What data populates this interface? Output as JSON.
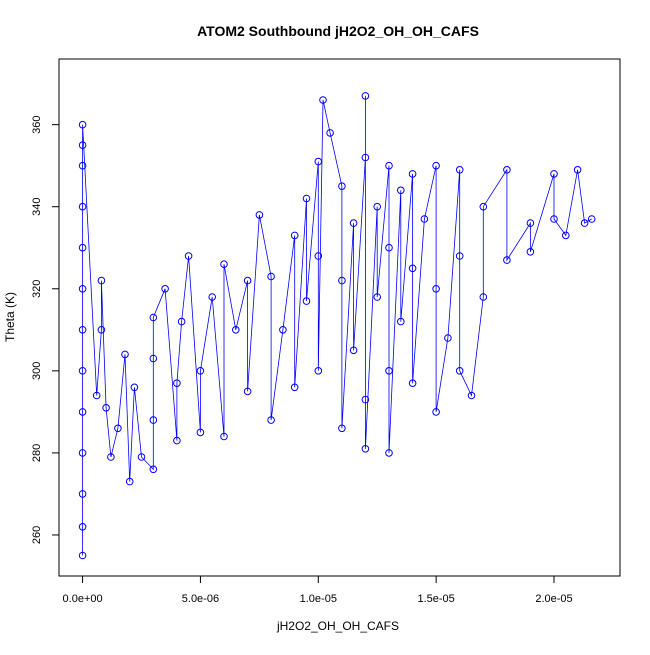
{
  "chart_data": {
    "type": "scatter",
    "title": "ATOM2 Southbound jH2O2_OH_OH_CAFS",
    "xlabel": "jH2O2_OH_OH_CAFS",
    "ylabel": "Theta (K)",
    "xlim": [
      -1e-06,
      2.28e-05
    ],
    "ylim": [
      250,
      376
    ],
    "x_ticks": [
      {
        "value": 0,
        "label": "0.0e+00"
      },
      {
        "value": 5e-06,
        "label": "5.0e-06"
      },
      {
        "value": 1e-05,
        "label": "1.0e-05"
      },
      {
        "value": 1.5e-05,
        "label": "1.5e-05"
      },
      {
        "value": 2e-05,
        "label": "2.0e-05"
      }
    ],
    "y_ticks": [
      {
        "value": 260,
        "label": "260"
      },
      {
        "value": 280,
        "label": "280"
      },
      {
        "value": 300,
        "label": "300"
      },
      {
        "value": 320,
        "label": "320"
      },
      {
        "value": 340,
        "label": "340"
      },
      {
        "value": 360,
        "label": "360"
      }
    ],
    "grid": false,
    "legend": "none",
    "marker": "open-circle",
    "series_color": "#0000ff",
    "series": [
      {
        "values": [
          {
            "x": 0,
            "y": 255
          },
          {
            "x": 0,
            "y": 262
          },
          {
            "x": 0,
            "y": 270
          },
          {
            "x": 0,
            "y": 280
          },
          {
            "x": 0,
            "y": 290
          },
          {
            "x": 0,
            "y": 300
          },
          {
            "x": 0,
            "y": 310
          },
          {
            "x": 0,
            "y": 320
          },
          {
            "x": 0,
            "y": 330
          },
          {
            "x": 0,
            "y": 340
          },
          {
            "x": 0,
            "y": 350
          },
          {
            "x": 0,
            "y": 355
          },
          {
            "x": 0,
            "y": 360
          },
          {
            "x": 6e-07,
            "y": 294
          },
          {
            "x": 8e-07,
            "y": 310
          },
          {
            "x": 8e-07,
            "y": 322
          },
          {
            "x": 1e-06,
            "y": 291
          },
          {
            "x": 1.2e-06,
            "y": 279
          },
          {
            "x": 1.5e-06,
            "y": 286
          },
          {
            "x": 1.8e-06,
            "y": 304
          },
          {
            "x": 2e-06,
            "y": 273
          },
          {
            "x": 2.2e-06,
            "y": 296
          },
          {
            "x": 2.5e-06,
            "y": 279
          },
          {
            "x": 3e-06,
            "y": 276
          },
          {
            "x": 3e-06,
            "y": 288
          },
          {
            "x": 3e-06,
            "y": 303
          },
          {
            "x": 3e-06,
            "y": 313
          },
          {
            "x": 3.5e-06,
            "y": 320
          },
          {
            "x": 4e-06,
            "y": 283
          },
          {
            "x": 4e-06,
            "y": 297
          },
          {
            "x": 4.2e-06,
            "y": 312
          },
          {
            "x": 4.5e-06,
            "y": 328
          },
          {
            "x": 5e-06,
            "y": 285
          },
          {
            "x": 5e-06,
            "y": 300
          },
          {
            "x": 5.5e-06,
            "y": 318
          },
          {
            "x": 6e-06,
            "y": 284
          },
          {
            "x": 6e-06,
            "y": 326
          },
          {
            "x": 6.5e-06,
            "y": 310
          },
          {
            "x": 7e-06,
            "y": 322
          },
          {
            "x": 7e-06,
            "y": 295
          },
          {
            "x": 7.5e-06,
            "y": 338
          },
          {
            "x": 8e-06,
            "y": 323
          },
          {
            "x": 8e-06,
            "y": 288
          },
          {
            "x": 8.5e-06,
            "y": 310
          },
          {
            "x": 9e-06,
            "y": 333
          },
          {
            "x": 9e-06,
            "y": 296
          },
          {
            "x": 9.5e-06,
            "y": 342
          },
          {
            "x": 9.5e-06,
            "y": 317
          },
          {
            "x": 1e-05,
            "y": 351
          },
          {
            "x": 1e-05,
            "y": 328
          },
          {
            "x": 1e-05,
            "y": 300
          },
          {
            "x": 1.02e-05,
            "y": 366
          },
          {
            "x": 1.05e-05,
            "y": 358
          },
          {
            "x": 1.1e-05,
            "y": 345
          },
          {
            "x": 1.1e-05,
            "y": 322
          },
          {
            "x": 1.1e-05,
            "y": 286
          },
          {
            "x": 1.15e-05,
            "y": 336
          },
          {
            "x": 1.15e-05,
            "y": 305
          },
          {
            "x": 1.2e-05,
            "y": 352
          },
          {
            "x": 1.2e-05,
            "y": 367
          },
          {
            "x": 1.2e-05,
            "y": 293
          },
          {
            "x": 1.2e-05,
            "y": 281
          },
          {
            "x": 1.25e-05,
            "y": 340
          },
          {
            "x": 1.25e-05,
            "y": 318
          },
          {
            "x": 1.3e-05,
            "y": 350
          },
          {
            "x": 1.3e-05,
            "y": 330
          },
          {
            "x": 1.3e-05,
            "y": 300
          },
          {
            "x": 1.3e-05,
            "y": 280
          },
          {
            "x": 1.35e-05,
            "y": 344
          },
          {
            "x": 1.35e-05,
            "y": 312
          },
          {
            "x": 1.4e-05,
            "y": 348
          },
          {
            "x": 1.4e-05,
            "y": 325
          },
          {
            "x": 1.4e-05,
            "y": 297
          },
          {
            "x": 1.45e-05,
            "y": 337
          },
          {
            "x": 1.5e-05,
            "y": 350
          },
          {
            "x": 1.5e-05,
            "y": 320
          },
          {
            "x": 1.5e-05,
            "y": 290
          },
          {
            "x": 1.55e-05,
            "y": 308
          },
          {
            "x": 1.6e-05,
            "y": 349
          },
          {
            "x": 1.6e-05,
            "y": 328
          },
          {
            "x": 1.6e-05,
            "y": 300
          },
          {
            "x": 1.65e-05,
            "y": 294
          },
          {
            "x": 1.7e-05,
            "y": 318
          },
          {
            "x": 1.7e-05,
            "y": 340
          },
          {
            "x": 1.8e-05,
            "y": 349
          },
          {
            "x": 1.8e-05,
            "y": 327
          },
          {
            "x": 1.9e-05,
            "y": 336
          },
          {
            "x": 1.9e-05,
            "y": 329
          },
          {
            "x": 2e-05,
            "y": 348
          },
          {
            "x": 2e-05,
            "y": 337
          },
          {
            "x": 2.05e-05,
            "y": 333
          },
          {
            "x": 2.1e-05,
            "y": 349
          },
          {
            "x": 2.13e-05,
            "y": 336
          },
          {
            "x": 2.16e-05,
            "y": 337
          }
        ]
      }
    ]
  }
}
